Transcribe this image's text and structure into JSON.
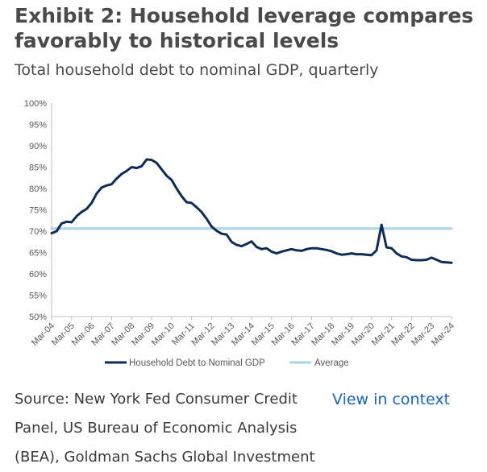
{
  "title": "Exhibit 2: Household leverage compares favorably to historical levels",
  "subtitle": "Total household debt to nominal GDP, quarterly",
  "source": "Source: New York Fed Consumer Credit Panel, US Bureau of Economic Analysis (BEA), Goldman Sachs Global Investment",
  "link_label": "View in context",
  "colors": {
    "series": "#0e2d56",
    "average": "#a9d3ef",
    "axis": "#bfbfbf",
    "tick_text": "#595959"
  },
  "chart_data": {
    "type": "line",
    "ylim": [
      50,
      100
    ],
    "y_ticks": [
      "50%",
      "55%",
      "60%",
      "65%",
      "70%",
      "75%",
      "80%",
      "85%",
      "90%",
      "95%",
      "100%"
    ],
    "x_ticks": [
      "Mar-04",
      "Mar-05",
      "Mar-06",
      "Mar-07",
      "Mar-08",
      "Mar-09",
      "Mar-10",
      "Mar-11",
      "Mar-12",
      "Mar-13",
      "Mar-14",
      "Mar-15",
      "Mar-16",
      "Mar-17",
      "Mar-18",
      "Mar-19",
      "Mar-20",
      "Mar-21",
      "Mar-22",
      "Mar-23",
      "Mar-24"
    ],
    "legend_position": "bottom",
    "grid": false,
    "series": [
      {
        "name": "Household Debt to Nominal GDP",
        "x": [
          2004.0,
          2004.25,
          2004.5,
          2004.75,
          2005.0,
          2005.25,
          2005.5,
          2005.75,
          2006.0,
          2006.25,
          2006.5,
          2006.75,
          2007.0,
          2007.25,
          2007.5,
          2007.75,
          2008.0,
          2008.25,
          2008.5,
          2008.75,
          2009.0,
          2009.25,
          2009.5,
          2009.75,
          2010.0,
          2010.25,
          2010.5,
          2010.75,
          2011.0,
          2011.25,
          2011.5,
          2011.75,
          2012.0,
          2012.25,
          2012.5,
          2012.75,
          2013.0,
          2013.25,
          2013.5,
          2013.75,
          2014.0,
          2014.25,
          2014.5,
          2014.75,
          2015.0,
          2015.25,
          2015.5,
          2015.75,
          2016.0,
          2016.25,
          2016.5,
          2016.75,
          2017.0,
          2017.25,
          2017.5,
          2017.75,
          2018.0,
          2018.25,
          2018.5,
          2018.75,
          2019.0,
          2019.25,
          2019.5,
          2019.75,
          2020.0,
          2020.25,
          2020.5,
          2020.75,
          2021.0,
          2021.25,
          2021.5,
          2021.75,
          2022.0,
          2022.25,
          2022.5,
          2022.75,
          2023.0,
          2023.25,
          2023.5,
          2023.75,
          2024.0
        ],
        "values": [
          69.5,
          70.0,
          71.8,
          72.2,
          72.1,
          73.5,
          74.5,
          75.2,
          76.6,
          78.8,
          80.2,
          80.7,
          81.0,
          82.3,
          83.4,
          84.1,
          85.0,
          84.8,
          85.2,
          86.8,
          86.7,
          86.0,
          84.5,
          83.0,
          82.0,
          80.0,
          78.2,
          76.8,
          76.6,
          75.6,
          74.5,
          72.9,
          71.1,
          70.1,
          69.4,
          69.2,
          67.5,
          66.8,
          66.5,
          67.0,
          67.6,
          66.3,
          65.8,
          66.0,
          65.2,
          64.8,
          65.2,
          65.5,
          65.8,
          65.5,
          65.4,
          65.8,
          66.0,
          66.0,
          65.8,
          65.6,
          65.3,
          64.8,
          64.5,
          64.6,
          64.8,
          64.6,
          64.6,
          64.5,
          64.4,
          65.5,
          71.5,
          66.2,
          66.0,
          64.8,
          64.1,
          63.9,
          63.3,
          63.2,
          63.2,
          63.3,
          63.8,
          63.3,
          62.8,
          62.7,
          62.6
        ]
      },
      {
        "name": "Average",
        "x": [
          2004.0,
          2024.0
        ],
        "values": [
          70.6,
          70.6
        ]
      }
    ]
  }
}
